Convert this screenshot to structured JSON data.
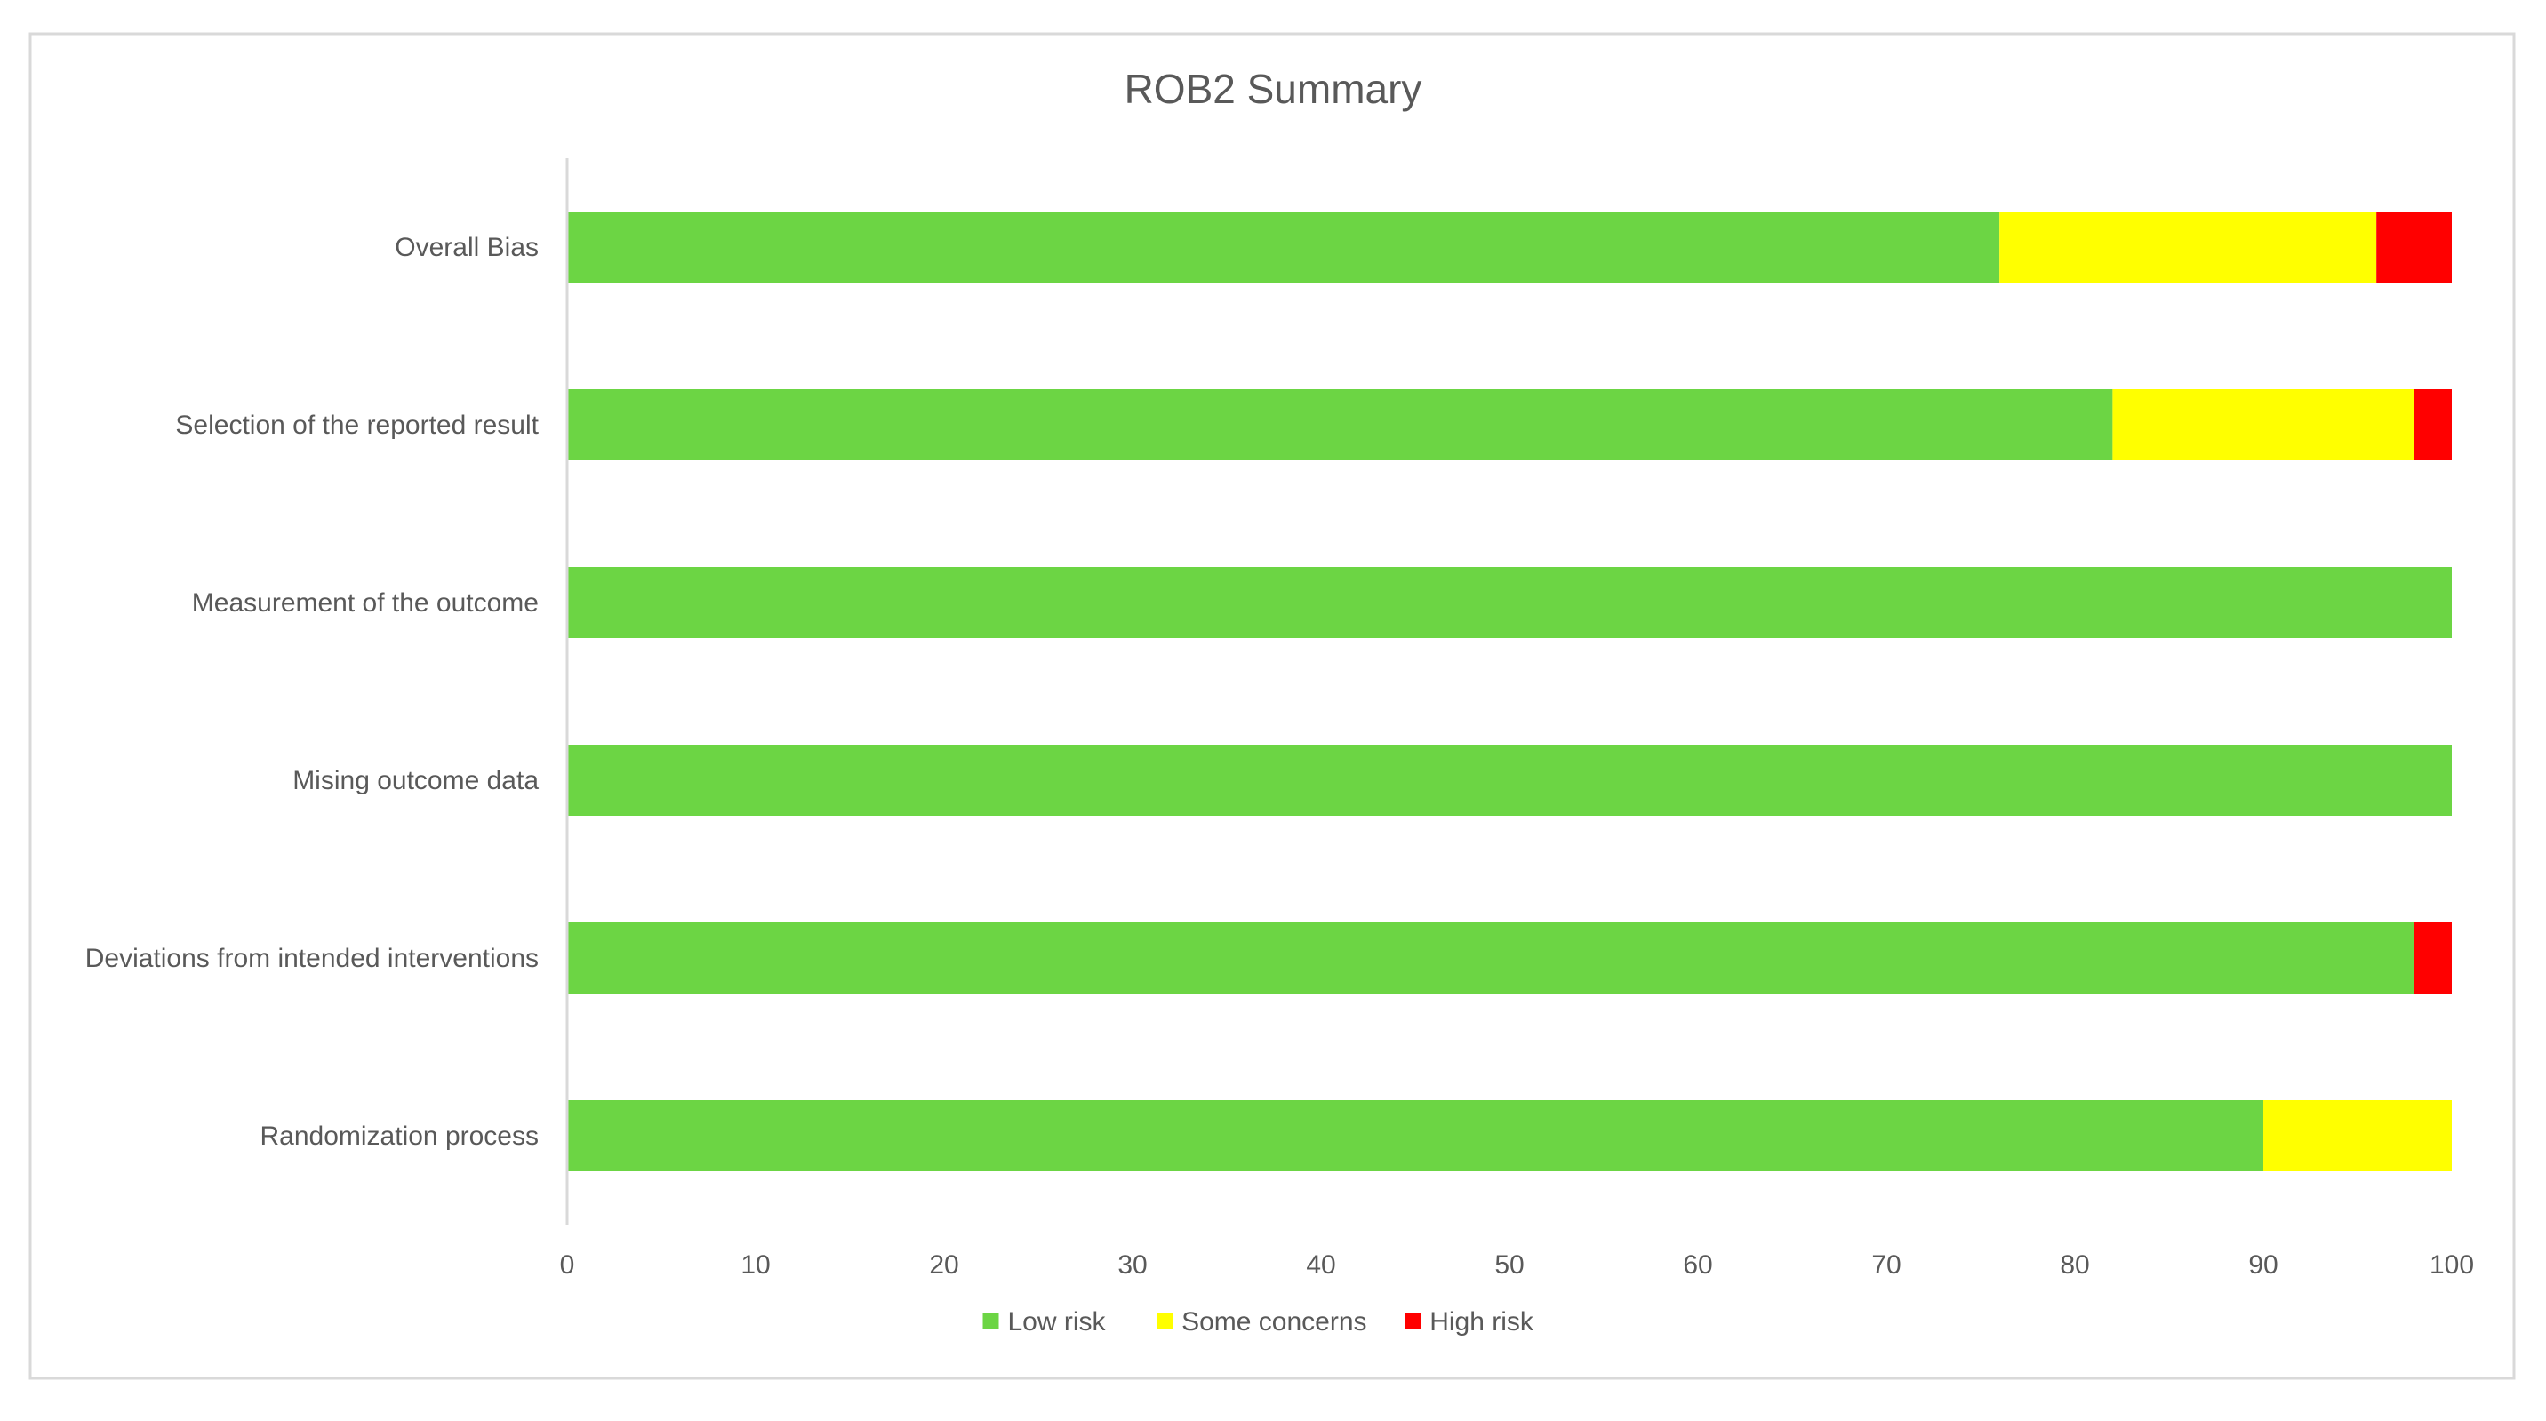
{
  "chart_data": {
    "type": "bar",
    "orientation": "horizontal",
    "stacked": true,
    "title": "ROB2 Summary",
    "xlabel": "",
    "ylabel": "",
    "xlim": [
      0,
      100
    ],
    "x_ticks": [
      "0",
      "10",
      "20",
      "30",
      "40",
      "50",
      "60",
      "70",
      "80",
      "90",
      "100"
    ],
    "grid": false,
    "legend_position": "bottom",
    "categories": [
      "Overall Bias",
      "Selection of the reported result",
      "Measurement of the outcome",
      "Mising outcome data",
      "Deviations from intended interventions",
      "Randomization process"
    ],
    "series": [
      {
        "name": "Low risk",
        "color": "#6cd544",
        "values": [
          76,
          82,
          100,
          100,
          98,
          90
        ]
      },
      {
        "name": "Some concerns",
        "color": "#ffff00",
        "values": [
          20,
          16,
          0,
          0,
          0,
          10
        ]
      },
      {
        "name": "High risk",
        "color": "#ff0000",
        "values": [
          4,
          2,
          0,
          0,
          2,
          0
        ]
      }
    ]
  }
}
